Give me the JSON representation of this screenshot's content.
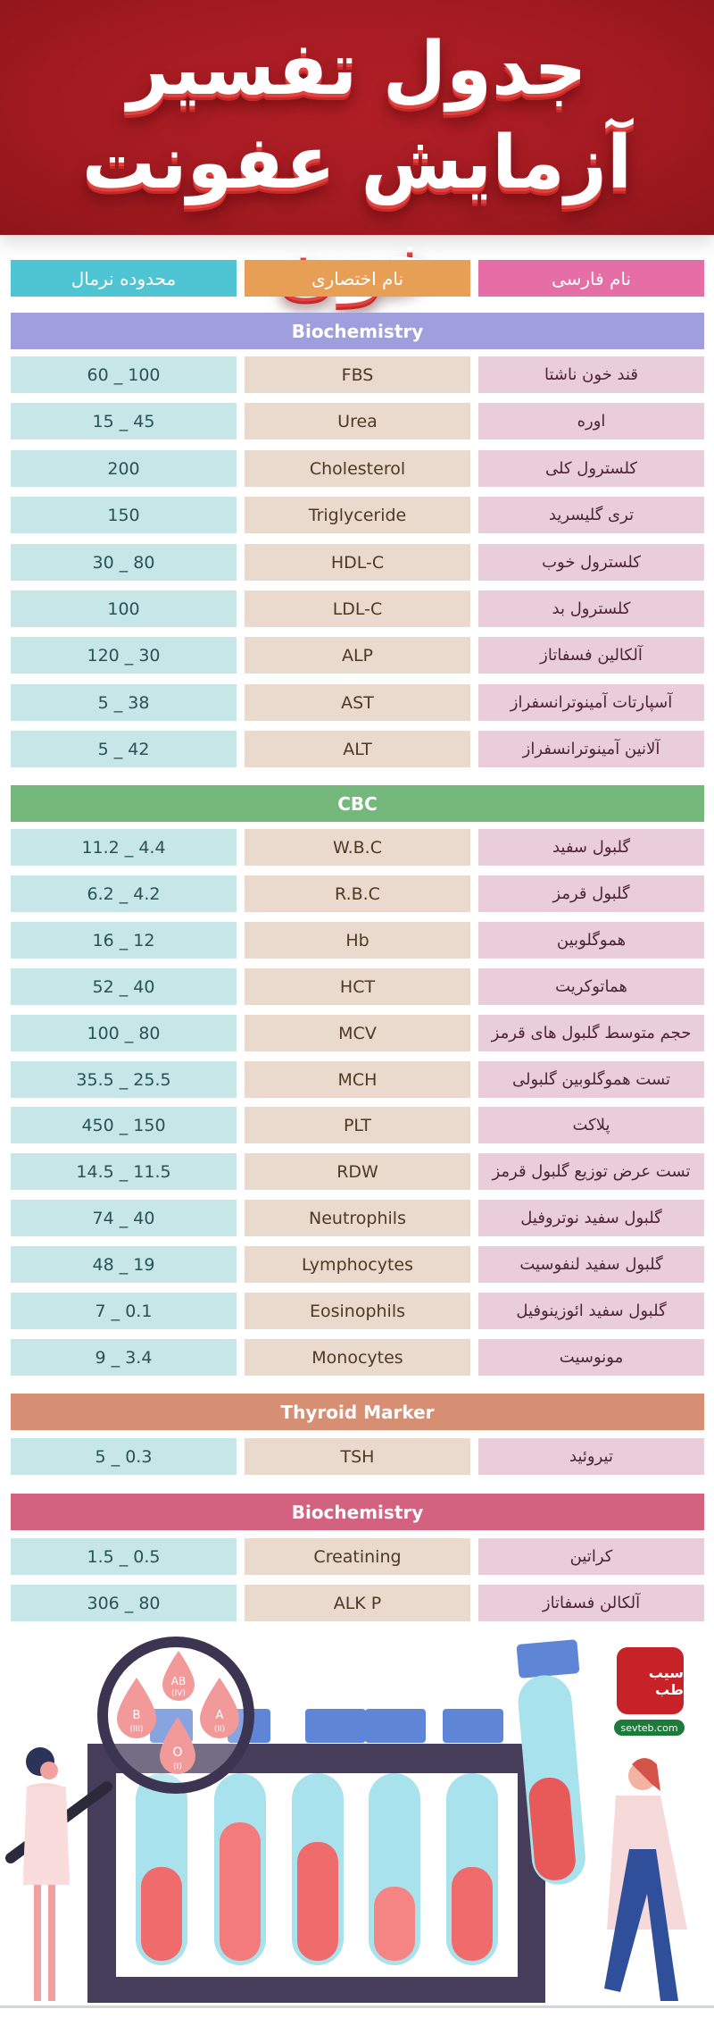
{
  "title": {
    "line1": "جدول تفسیر",
    "line2": "آزمایش عفونت خون",
    "background_color": "#a51b22"
  },
  "columns": {
    "range": "محدوده نرمال",
    "abbr": "نام اختصاری",
    "fa_name": "نام فارسی",
    "colors": {
      "range": "#4fc4d3",
      "abbr": "#e69f55",
      "fa_name": "#e56ea6"
    }
  },
  "sections": [
    {
      "title": "Biochemistry",
      "color": "#a09fdd",
      "rows": [
        {
          "fa": "قند خون ناشتا",
          "abbr": "FBS",
          "range": "60 _ 100"
        },
        {
          "fa": "اوره",
          "abbr": "Urea",
          "range": "15 _ 45"
        },
        {
          "fa": "کلسترول کلی",
          "abbr": "Cholesterol",
          "range": "200"
        },
        {
          "fa": "تری گلیسرید",
          "abbr": "Triglyceride",
          "range": "150"
        },
        {
          "fa": "کلسترول خوب",
          "abbr": "HDL-C",
          "range": "30 _ 80"
        },
        {
          "fa": "کلسترول بد",
          "abbr": "LDL-C",
          "range": "100"
        },
        {
          "fa": "آلکالین فسفاتاز",
          "abbr": "ALP",
          "range": "120 _ 30"
        },
        {
          "fa": "آسپارتات آمینوترانسفراز",
          "abbr": "AST",
          "range": "5 _ 38"
        },
        {
          "fa": "آلانین آمینوترانسفراز",
          "abbr": "ALT",
          "range": "5 _ 42"
        }
      ]
    },
    {
      "title": "CBC",
      "color": "#74b87c",
      "rows": [
        {
          "fa": "گلبول سفید",
          "abbr": "W.B.C",
          "range": "11.2 _ 4.4"
        },
        {
          "fa": "گلبول قرمز",
          "abbr": "R.B.C",
          "range": "6.2 _ 4.2"
        },
        {
          "fa": "هموگلوبین",
          "abbr": "Hb",
          "range": "16 _ 12"
        },
        {
          "fa": "هماتوکریت",
          "abbr": "HCT",
          "range": "52 _ 40"
        },
        {
          "fa": "حجم متوسط گلبول های قرمز",
          "abbr": "MCV",
          "range": "100 _ 80"
        },
        {
          "fa": "تست هموگلوبین گلبولی",
          "abbr": "MCH",
          "range": "35.5 _ 25.5"
        },
        {
          "fa": "پلاکت",
          "abbr": "PLT",
          "range": "450 _ 150"
        },
        {
          "fa": "تست عرض توزیع گلبول قرمز",
          "abbr": "RDW",
          "range": "14.5 _ 11.5"
        },
        {
          "fa": "گلبول سفید نوتروفیل",
          "abbr": "Neutrophils",
          "range": "74 _ 40"
        },
        {
          "fa": "گلبول سفید لنفوسیت",
          "abbr": "Lymphocytes",
          "range": "48 _ 19"
        },
        {
          "fa": "گلبول سفید ائوزینوفیل",
          "abbr": "Eosinophils",
          "range": "7 _ 0.1"
        },
        {
          "fa": "مونوسیت",
          "abbr": "Monocytes",
          "range": "9 _ 3.4"
        }
      ]
    },
    {
      "title": "Thyroid Marker",
      "color": "#d78f73",
      "rows": [
        {
          "fa": "تیروئید",
          "abbr": "TSH",
          "range": "5 _ 0.3"
        }
      ]
    },
    {
      "title": "Biochemistry",
      "color": "#d2627f",
      "rows": [
        {
          "fa": "کراتین",
          "abbr": "Creatining",
          "range": "1.5 _ 0.5"
        },
        {
          "fa": "آلکالن فسفاتاز",
          "abbr": "ALK P",
          "range": "306 _ 80"
        }
      ]
    }
  ],
  "illustration": {
    "blood_types": [
      {
        "label": "AB",
        "roman": "(IV)"
      },
      {
        "label": "B",
        "roman": "(III)"
      },
      {
        "label": "A",
        "roman": "(II)"
      },
      {
        "label": "O",
        "roman": "(I)"
      }
    ]
  },
  "logo": {
    "mark": "سیب طب",
    "url": "sevteb.com"
  }
}
